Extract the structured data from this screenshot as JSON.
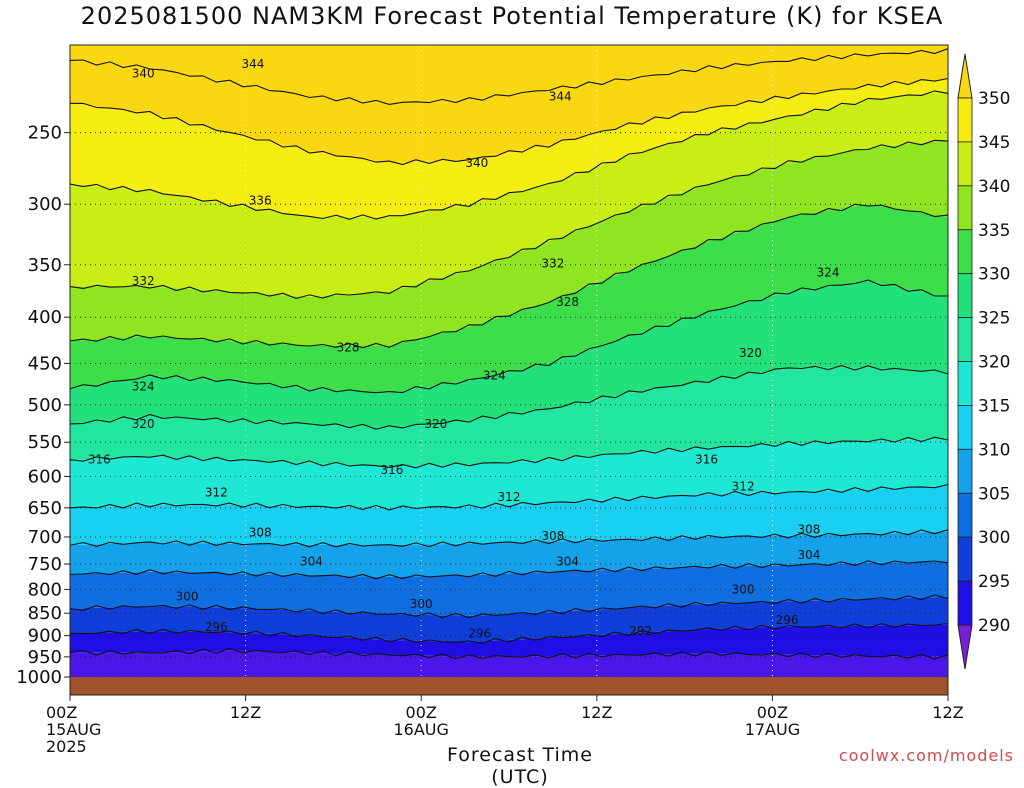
{
  "title": "2025081500 NAM3KM Forecast Potential Temperature (K) for KSEA",
  "credit": "coolwx.com/models",
  "chart_data": {
    "type": "heatmap",
    "title": "2025081500 NAM3KM Forecast Potential Temperature (K) for KSEA",
    "xlabel": "Forecast Time (UTC)",
    "ylabel": "",
    "x_ticks": [
      {
        "hour": 0,
        "lines": [
          "00Z",
          "15AUG",
          "2025"
        ]
      },
      {
        "hour": 12,
        "lines": [
          "12Z"
        ]
      },
      {
        "hour": 24,
        "lines": [
          "00Z",
          "16AUG"
        ]
      },
      {
        "hour": 36,
        "lines": [
          "12Z"
        ]
      },
      {
        "hour": 48,
        "lines": [
          "00Z",
          "17AUG"
        ]
      },
      {
        "hour": 60,
        "lines": [
          "12Z"
        ]
      }
    ],
    "xlim": [
      0,
      60
    ],
    "y_ticks": [
      250,
      300,
      350,
      400,
      450,
      500,
      550,
      600,
      650,
      700,
      750,
      800,
      850,
      900,
      950,
      1000
    ],
    "ylim": [
      200,
      1000
    ],
    "y_scale": "log-pressure",
    "grid": true,
    "colorbar": {
      "levels": [
        290,
        295,
        300,
        305,
        310,
        315,
        320,
        325,
        330,
        335,
        340,
        345,
        350
      ],
      "colors": [
        "#7a1fd8",
        "#4b16e8",
        "#1f0fe5",
        "#0f3fd8",
        "#0f6fe0",
        "#14a2ea",
        "#1ad0f0",
        "#1ee8d4",
        "#22e6a0",
        "#22e07a",
        "#3cde4a",
        "#8fe51f",
        "#c8ee16",
        "#f5ec12",
        "#f9d812"
      ],
      "extend": "both",
      "placement": "right"
    },
    "contours": [
      {
        "value": 292,
        "p": [
          940,
          940,
          935,
          940,
          945,
          950,
          948,
          945,
          942,
          945,
          948,
          950
        ]
      },
      {
        "value": 296,
        "p": [
          895,
          890,
          892,
          900,
          910,
          915,
          905,
          895,
          885,
          880,
          878,
          875
        ]
      },
      {
        "value": 300,
        "p": [
          840,
          835,
          838,
          845,
          852,
          856,
          848,
          838,
          830,
          825,
          820,
          815
        ]
      },
      {
        "value": 304,
        "p": [
          770,
          765,
          768,
          772,
          775,
          772,
          765,
          760,
          755,
          752,
          748,
          745
        ]
      },
      {
        "value": 308,
        "p": [
          715,
          710,
          712,
          714,
          715,
          712,
          708,
          705,
          700,
          698,
          695,
          690
        ]
      },
      {
        "value": 312,
        "p": [
          650,
          645,
          645,
          648,
          650,
          648,
          642,
          635,
          628,
          625,
          620,
          615
        ]
      },
      {
        "value": 316,
        "p": [
          575,
          570,
          575,
          580,
          585,
          582,
          575,
          565,
          558,
          552,
          548,
          545
        ]
      },
      {
        "value": 320,
        "p": [
          525,
          515,
          520,
          525,
          530,
          520,
          505,
          485,
          470,
          455,
          455,
          460
        ]
      },
      {
        "value": 324,
        "p": [
          480,
          465,
          470,
          480,
          485,
          470,
          450,
          420,
          395,
          375,
          365,
          380
        ]
      },
      {
        "value": 328,
        "p": [
          425,
          420,
          425,
          430,
          430,
          410,
          385,
          355,
          330,
          310,
          300,
          310
        ]
      },
      {
        "value": 332,
        "p": [
          370,
          370,
          375,
          380,
          375,
          355,
          330,
          305,
          285,
          270,
          260,
          255
        ]
      },
      {
        "value": 336,
        "p": [
          285,
          290,
          300,
          310,
          310,
          300,
          285,
          265,
          250,
          240,
          230,
          225
        ]
      },
      {
        "value": 340,
        "p": [
          232,
          238,
          250,
          262,
          270,
          268,
          258,
          245,
          235,
          228,
          222,
          218
        ]
      },
      {
        "value": 344,
        "p": [
          208,
          212,
          220,
          228,
          232,
          230,
          224,
          218,
          212,
          208,
          205,
          203
        ]
      }
    ],
    "contour_labels": [
      {
        "value": "340",
        "hour": 5.0,
        "p": 215
      },
      {
        "value": "344",
        "hour": 12.5,
        "p": 210
      },
      {
        "value": "344",
        "hour": 33.5,
        "p": 228
      },
      {
        "value": "340",
        "hour": 27.8,
        "p": 270
      },
      {
        "value": "336",
        "hour": 13.0,
        "p": 297
      },
      {
        "value": "332",
        "hour": 5.0,
        "p": 365
      },
      {
        "value": "332",
        "hour": 33.0,
        "p": 349
      },
      {
        "value": "324",
        "hour": 51.8,
        "p": 357
      },
      {
        "value": "328",
        "hour": 34.0,
        "p": 385
      },
      {
        "value": "328",
        "hour": 19.0,
        "p": 432
      },
      {
        "value": "320",
        "hour": 46.5,
        "p": 438
      },
      {
        "value": "324",
        "hour": 29.0,
        "p": 464
      },
      {
        "value": "324",
        "hour": 5.0,
        "p": 477
      },
      {
        "value": "320",
        "hour": 5.0,
        "p": 525
      },
      {
        "value": "320",
        "hour": 25.0,
        "p": 525
      },
      {
        "value": "316",
        "hour": 2.0,
        "p": 575
      },
      {
        "value": "316",
        "hour": 22.0,
        "p": 590
      },
      {
        "value": "316",
        "hour": 43.5,
        "p": 575
      },
      {
        "value": "312",
        "hour": 10.0,
        "p": 625
      },
      {
        "value": "312",
        "hour": 30.0,
        "p": 632
      },
      {
        "value": "312",
        "hour": 46.0,
        "p": 616
      },
      {
        "value": "308",
        "hour": 13.0,
        "p": 692
      },
      {
        "value": "308",
        "hour": 33.0,
        "p": 698
      },
      {
        "value": "308",
        "hour": 50.5,
        "p": 687
      },
      {
        "value": "304",
        "hour": 16.5,
        "p": 745
      },
      {
        "value": "304",
        "hour": 34.0,
        "p": 745
      },
      {
        "value": "304",
        "hour": 50.5,
        "p": 733
      },
      {
        "value": "300",
        "hour": 8.0,
        "p": 815
      },
      {
        "value": "300",
        "hour": 24.0,
        "p": 830
      },
      {
        "value": "300",
        "hour": 46.0,
        "p": 800
      },
      {
        "value": "296",
        "hour": 10.0,
        "p": 880
      },
      {
        "value": "296",
        "hour": 28.0,
        "p": 895
      },
      {
        "value": "296",
        "hour": 49.0,
        "p": 865
      },
      {
        "value": "292",
        "hour": 39.0,
        "p": 890
      }
    ]
  }
}
